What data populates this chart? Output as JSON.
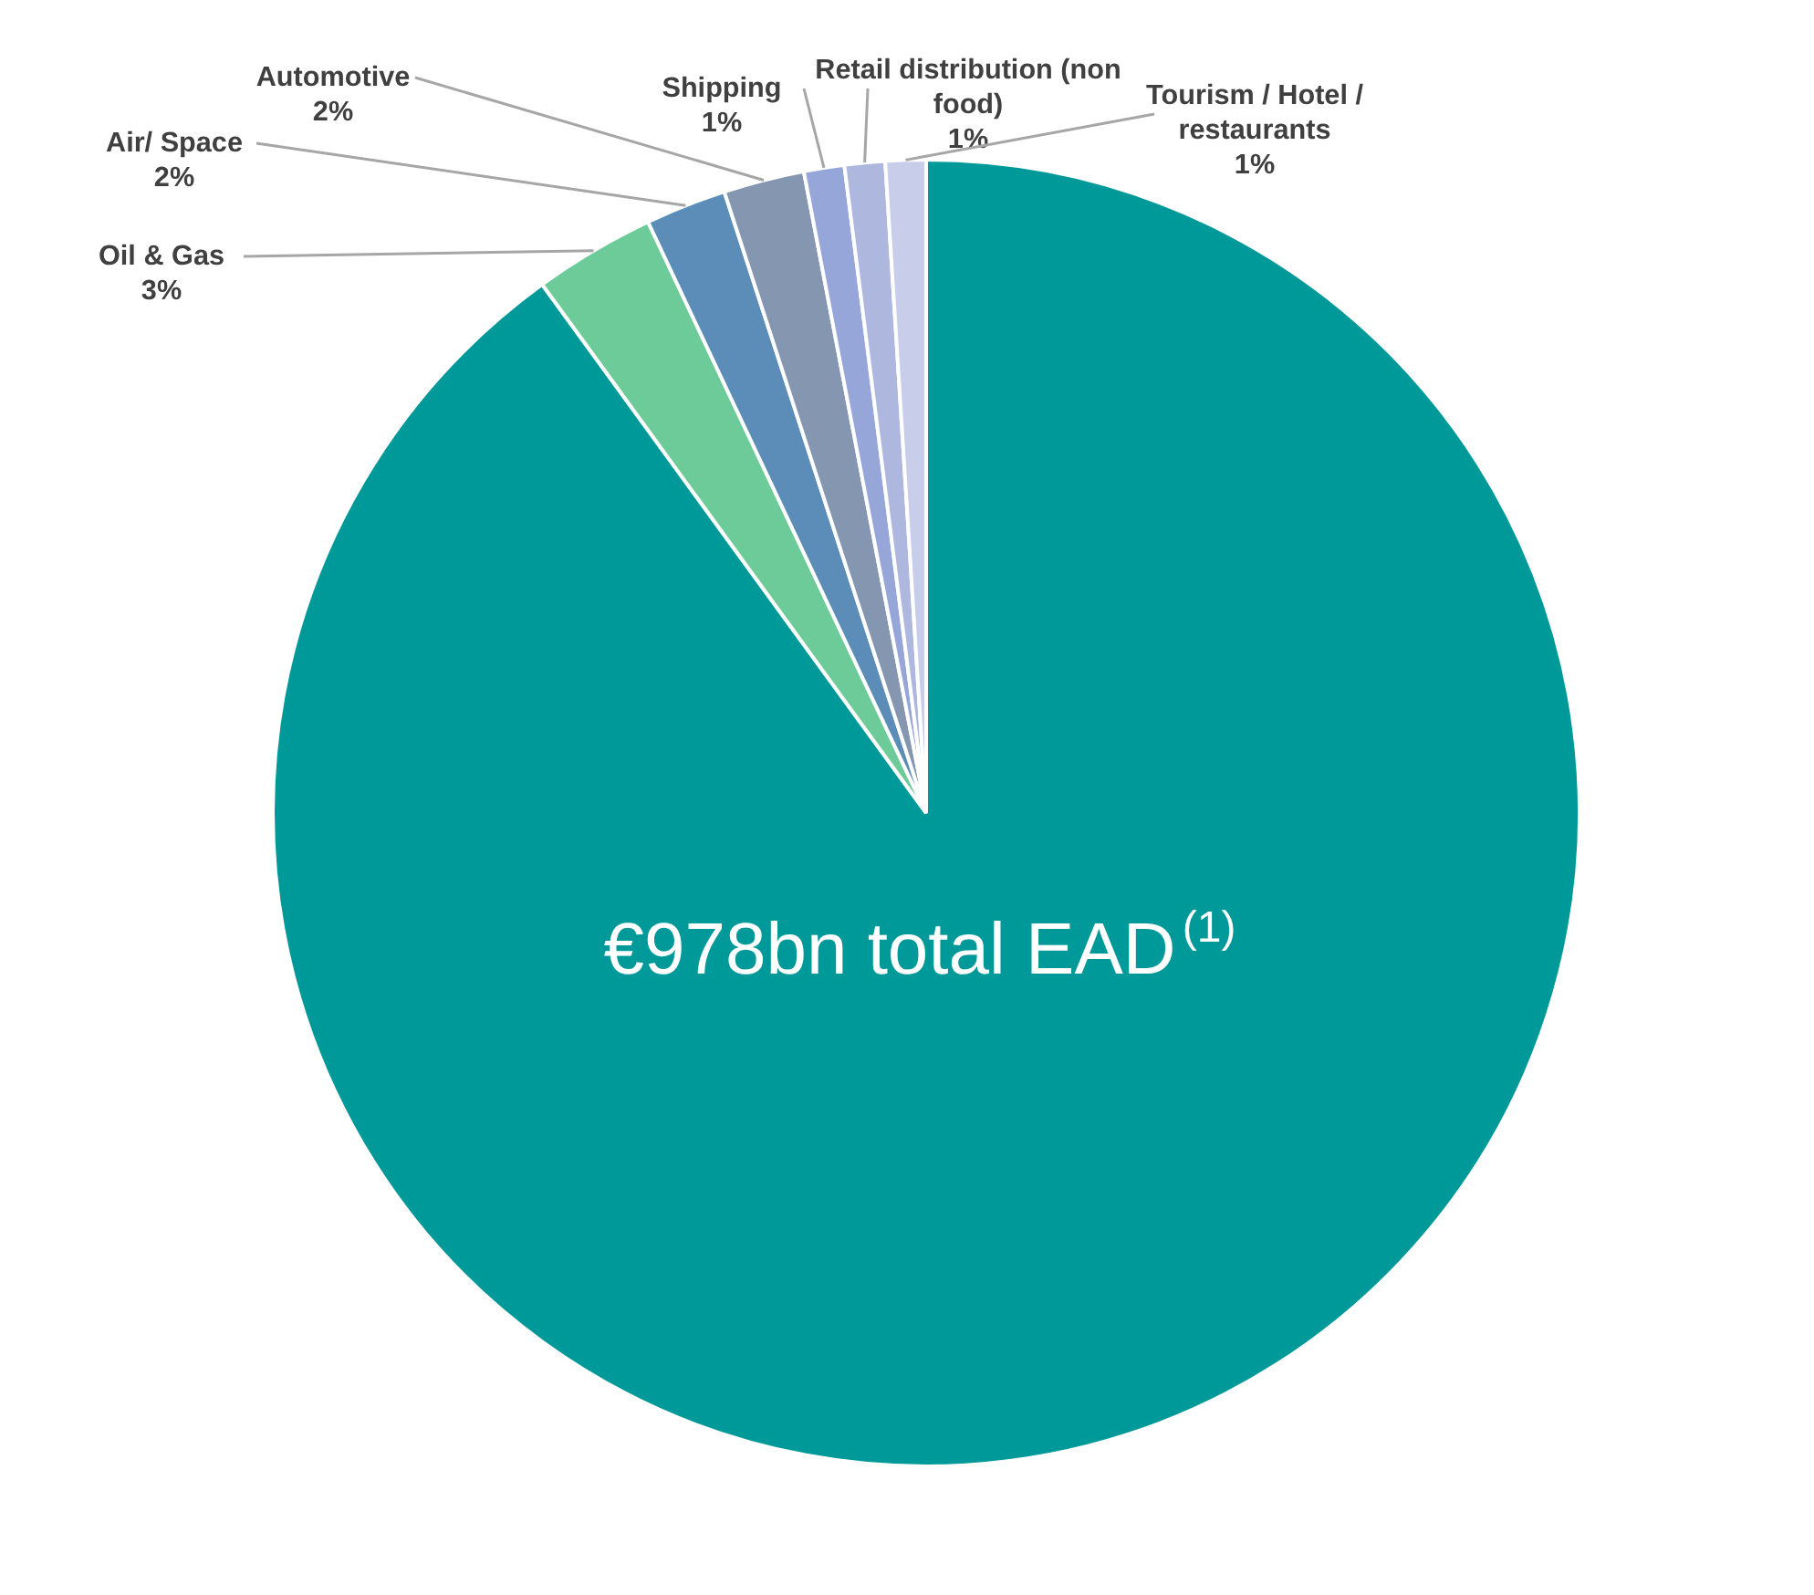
{
  "chart_data": {
    "type": "pie",
    "categories": [
      null,
      "Oil & Gas",
      "Air/ Space",
      "Automotive",
      "Shipping",
      "Retail distribution (non food)",
      "Tourism / Hotel / restaurants"
    ],
    "values": [
      90,
      3,
      2,
      2,
      1,
      1,
      1
    ],
    "value_labels": [
      null,
      "3%",
      "2%",
      "2%",
      "1%",
      "1%",
      "1%"
    ],
    "colors": [
      "#009999",
      "#6dcb99",
      "#5b8db8",
      "#8496b0",
      "#97a6d9",
      "#aeb7de",
      "#c8cde9"
    ],
    "annotations": [
      "€978bn total EAD$^{(1)}$"
    ]
  }
}
